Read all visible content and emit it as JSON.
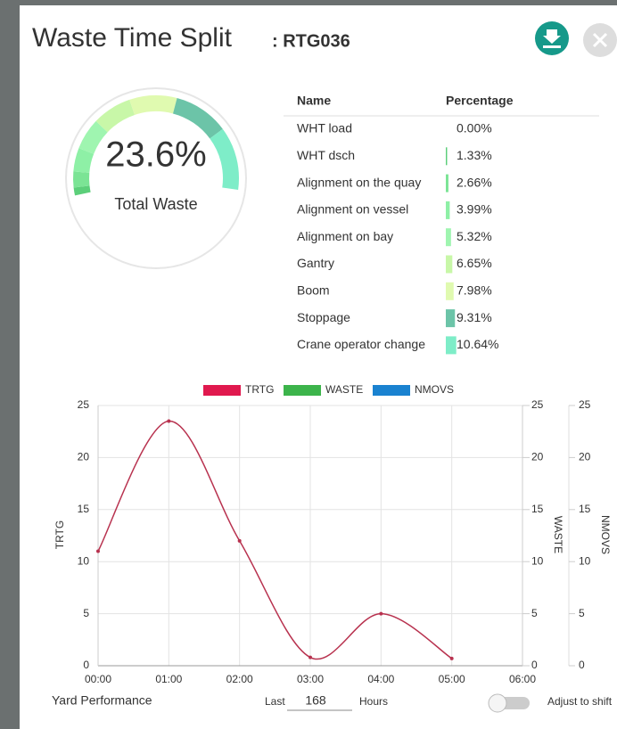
{
  "header": {
    "title": "Waste Time Split",
    "crane_id": ": RTG036"
  },
  "gauge": {
    "value": 23.6,
    "value_label": "23.6%",
    "label": "Total Waste"
  },
  "table": {
    "columns": [
      "Name",
      "Percentage"
    ],
    "rows": [
      {
        "name": "WHT load",
        "value": 0,
        "value_label": "0.00%",
        "color": "#5ccf7a"
      },
      {
        "name": "WHT dsch",
        "value": 1.33,
        "value_label": "1.33%",
        "color": "#5ccf7a"
      },
      {
        "name": "Alignment on the quay",
        "value": 2.66,
        "value_label": "2.66%",
        "color": "#7be495"
      },
      {
        "name": "Alignment on vessel",
        "value": 3.99,
        "value_label": "3.99%",
        "color": "#8ef0a6"
      },
      {
        "name": "Alignment on bay",
        "value": 5.32,
        "value_label": "5.32%",
        "color": "#9ff5b0"
      },
      {
        "name": "Gantry",
        "value": 6.65,
        "value_label": "6.65%",
        "color": "#c8f7a8"
      },
      {
        "name": "Boom",
        "value": 7.98,
        "value_label": "7.98%",
        "color": "#e0fab0"
      },
      {
        "name": "Stoppage",
        "value": 9.31,
        "value_label": "9.31%",
        "color": "#6cc4a8"
      },
      {
        "name": "Crane operator change",
        "value": 10.64,
        "value_label": "10.64%",
        "color": "#7eedc8"
      }
    ]
  },
  "chart_data": {
    "type": "line",
    "categories": [
      "00:00",
      "01:00",
      "02:00",
      "03:00",
      "04:00",
      "05:00",
      "06:00"
    ],
    "series": [
      {
        "name": "TRTG",
        "color": "#e0194e",
        "values": [
          11,
          23.5,
          12,
          0.8,
          5,
          0.7,
          null
        ]
      },
      {
        "name": "WASTE",
        "color": "#3cb44b",
        "values": [
          null,
          null,
          null,
          null,
          null,
          null,
          null
        ]
      },
      {
        "name": "NMOVS",
        "color": "#1a82d0",
        "values": [
          null,
          null,
          null,
          null,
          null,
          null,
          null
        ]
      }
    ],
    "y_label": "TRTG",
    "y2_label": "WASTE",
    "y3_label": "NMOVS",
    "ylim": [
      0,
      25
    ],
    "yticks": [
      0,
      5,
      10,
      15,
      20,
      25
    ],
    "y2lim": [
      0,
      25
    ],
    "y2ticks": [
      0,
      5,
      10,
      15,
      20,
      25
    ],
    "y3lim": [
      0,
      25
    ],
    "y3ticks": [
      0,
      5,
      10,
      15,
      20,
      25
    ],
    "grid": true
  },
  "footer": {
    "label": "Yard Performance",
    "last": "Last",
    "hours_value": 168,
    "hours_unit": "Hours",
    "toggle_label": "Adjust to shift"
  }
}
